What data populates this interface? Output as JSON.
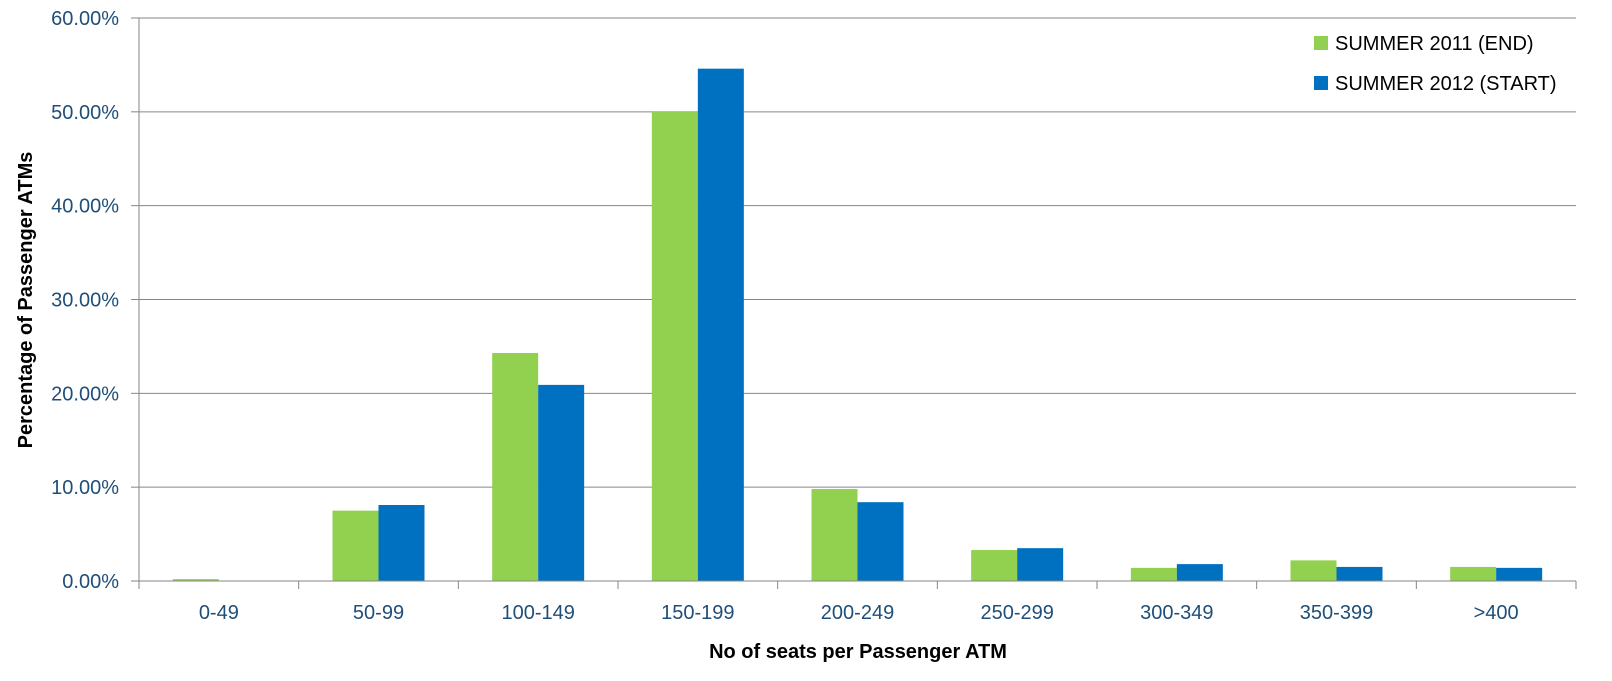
{
  "chart_data": {
    "type": "bar",
    "title": "",
    "xlabel": "No of seats per Passenger ATM",
    "ylabel": "Percentage of Passenger ATMs",
    "categories": [
      "0-49",
      "50-99",
      "100-149",
      "150-199",
      "200-249",
      "250-299",
      "300-349",
      "350-399",
      ">400"
    ],
    "series": [
      {
        "name": "SUMMER 2011 (END)",
        "color": "#92D050",
        "values": [
          0.2,
          7.5,
          24.3,
          50.0,
          9.8,
          3.3,
          1.4,
          2.2,
          1.5
        ]
      },
      {
        "name": "SUMMER 2012 (START)",
        "color": "#0070C0",
        "values": [
          0.0,
          8.1,
          20.9,
          54.6,
          8.4,
          3.5,
          1.8,
          1.5,
          1.4
        ]
      }
    ],
    "ylim": [
      0,
      60
    ],
    "yticks": [
      "0.00%",
      "10.00%",
      "20.00%",
      "30.00%",
      "40.00%",
      "50.00%",
      "60.00%"
    ],
    "grid": true,
    "legend_position": "top-right",
    "axis_label_color": "#1F4E79",
    "gridline_color": "#868686"
  }
}
